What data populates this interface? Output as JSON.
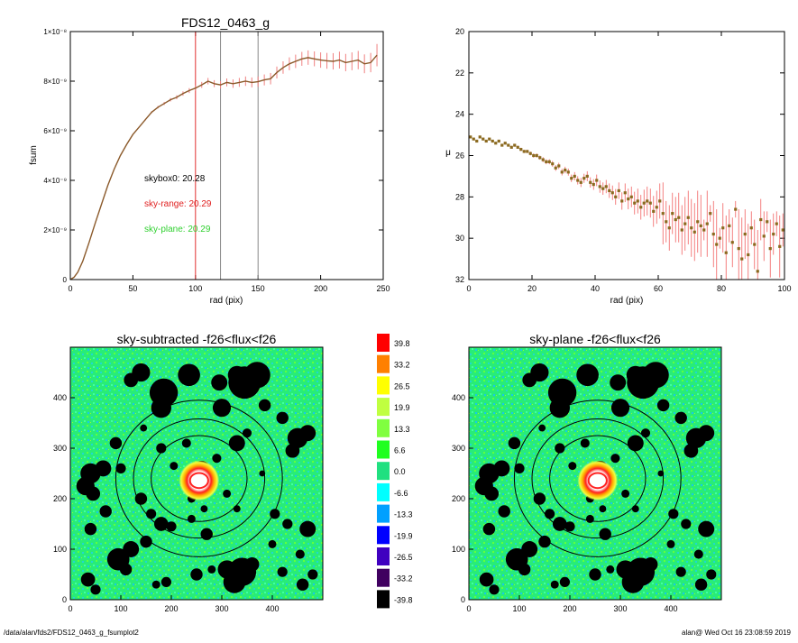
{
  "footer": {
    "path": "/data/alan/fds2/FDS12_0463_g_fsumplot2",
    "user_time": "alan@  Wed Oct 16 23:08:59 2019"
  },
  "chart_data": [
    {
      "id": "fsum-profile",
      "type": "line",
      "title": "FDS12_0463_g",
      "xlabel": "rad (pix)",
      "ylabel": "fsum",
      "xlim": [
        0,
        250
      ],
      "ylim": [
        0,
        1e-08
      ],
      "xticks": [
        "0",
        "50",
        "100",
        "150",
        "200",
        "250"
      ],
      "yticks": [
        "0",
        "2×10⁻⁹",
        "4×10⁻⁹",
        "6×10⁻⁹",
        "8×10⁻⁹",
        "1×10⁻⁸"
      ],
      "series": [
        {
          "x": [
            0,
            3,
            6,
            10,
            15,
            20,
            25,
            30,
            35,
            40,
            45,
            50,
            55,
            60,
            65,
            70,
            75,
            80,
            85,
            90,
            95,
            100,
            105,
            110,
            115,
            120,
            125,
            130,
            135,
            140,
            145,
            150,
            155,
            160,
            165,
            170,
            175,
            180,
            185,
            190,
            195,
            200,
            205,
            210,
            215,
            220,
            225,
            230,
            235,
            240,
            245
          ],
          "y": [
            0,
            1e-10,
            3e-10,
            7.5e-10,
            1.5e-09,
            2.3e-09,
            3.05e-09,
            3.8e-09,
            4.45e-09,
            5e-09,
            5.45e-09,
            5.85e-09,
            6.15e-09,
            6.45e-09,
            6.75e-09,
            6.95e-09,
            7.1e-09,
            7.25e-09,
            7.35e-09,
            7.5e-09,
            7.62e-09,
            7.72e-09,
            7.85e-09,
            8e-09,
            7.9e-09,
            7.85e-09,
            7.95e-09,
            7.9e-09,
            7.95e-09,
            8e-09,
            7.95e-09,
            7.98e-09,
            8.05e-09,
            8.1e-09,
            8.35e-09,
            8.55e-09,
            8.7e-09,
            8.8e-09,
            8.9e-09,
            8.95e-09,
            8.9e-09,
            8.85e-09,
            8.82e-09,
            8.8e-09,
            8.85e-09,
            8.75e-09,
            8.8e-09,
            8.85e-09,
            8.7e-09,
            8.75e-09,
            9.05e-09
          ],
          "yerr": [
            0,
            0,
            0,
            0,
            0,
            0,
            0,
            0,
            0,
            0,
            0,
            0,
            2e-11,
            3e-11,
            4e-11,
            5e-11,
            6e-11,
            7e-11,
            8e-11,
            9e-11,
            1e-10,
            1.1e-10,
            1.2e-10,
            1.3e-10,
            1.4e-10,
            1.5e-10,
            1.6e-10,
            1.7e-10,
            1.8e-10,
            1.9e-10,
            2e-10,
            2.1e-10,
            2.2e-10,
            2.3e-10,
            2.4e-10,
            2.5e-10,
            2.6e-10,
            2.7e-10,
            2.8e-10,
            2.9e-10,
            3e-10,
            3.1e-10,
            3.2e-10,
            3.3e-10,
            3.4e-10,
            3.5e-10,
            3.6e-10,
            3.7e-10,
            3.8e-10,
            3.9e-10,
            4.5e-10
          ]
        }
      ],
      "vlines": [
        {
          "x": 100,
          "color": "#e03030"
        },
        {
          "x": 120,
          "color": "#888888"
        },
        {
          "x": 150,
          "color": "#888888"
        }
      ],
      "annotations": [
        {
          "text": "skybox0: 20.28",
          "color": "#000000"
        },
        {
          "text": "sky-range: 20.29",
          "color": "#e02020"
        },
        {
          "text": "sky-plane: 20.29",
          "color": "#30d030"
        }
      ]
    },
    {
      "id": "mu-profile",
      "type": "scatter",
      "xlabel": "rad (pix)",
      "ylabel": "μ",
      "xlim": [
        0,
        100
      ],
      "ylim": [
        32,
        20
      ],
      "xticks": [
        "0",
        "20",
        "40",
        "60",
        "80",
        "100"
      ],
      "yticks": [
        "20",
        "22",
        "24",
        "26",
        "28",
        "30",
        "32"
      ],
      "x": [
        0.5,
        1.5,
        2.5,
        3.5,
        4.5,
        5.5,
        6.5,
        7.5,
        8.5,
        9.5,
        10.5,
        11.5,
        12.5,
        13.5,
        14.5,
        15.5,
        16.5,
        17.5,
        18.5,
        19.5,
        20.5,
        21.5,
        22.5,
        23.5,
        24.5,
        25.5,
        26.5,
        27.5,
        28.5,
        29.5,
        30.5,
        31.5,
        32.5,
        33.5,
        34.5,
        35.5,
        36.5,
        37.5,
        38.5,
        39.5,
        40.5,
        41.5,
        42.5,
        43.5,
        44.5,
        45.5,
        46.5,
        47.5,
        48.5,
        49.5,
        50.5,
        51.5,
        52.5,
        53.5,
        54.5,
        55.5,
        56.5,
        57.5,
        58.5,
        59.5,
        60.5,
        61.5,
        62.5,
        63.5,
        64.5,
        65.5,
        66.5,
        67.5,
        68.5,
        69.5,
        70.5,
        71.5,
        72.5,
        73.5,
        74.5,
        75.5,
        76.5,
        77.5,
        78.5,
        79.5,
        80.5,
        81.5,
        82.5,
        83.5,
        84.5,
        85.5,
        86.5,
        87.5,
        88.5,
        89.5,
        90.5,
        91.5,
        92.5,
        93.5,
        94.5,
        95.5,
        96.5,
        97.5,
        98.5,
        99.5
      ],
      "y": [
        25.1,
        25.2,
        25.3,
        25.1,
        25.2,
        25.3,
        25.2,
        25.3,
        25.4,
        25.3,
        25.5,
        25.4,
        25.5,
        25.6,
        25.5,
        25.6,
        25.7,
        25.8,
        25.8,
        25.9,
        26.0,
        26.0,
        26.1,
        26.2,
        26.3,
        26.3,
        26.4,
        26.6,
        26.5,
        26.8,
        26.7,
        26.8,
        27.1,
        27.0,
        27.2,
        27.3,
        27.1,
        27.0,
        27.3,
        27.4,
        27.2,
        27.5,
        27.6,
        27.5,
        27.7,
        27.8,
        28.0,
        27.7,
        28.2,
        27.8,
        28.1,
        28.0,
        28.3,
        28.2,
        28.5,
        28.3,
        28.2,
        28.3,
        28.7,
        28.5,
        28.2,
        28.8,
        29.2,
        29.5,
        28.8,
        29.1,
        29.0,
        29.6,
        29.3,
        29.0,
        29.5,
        29.7,
        29.2,
        29.4,
        29.6,
        29.3,
        28.8,
        29.8,
        30.3,
        30.0,
        29.5,
        30.7,
        29.4,
        30.2,
        28.6,
        30.5,
        31.0,
        29.8,
        30.8,
        29.5,
        30.3,
        31.6,
        29.1,
        29.9,
        29.2,
        30.5,
        29.8,
        29.3,
        30.4,
        29.6
      ],
      "yerr": [
        0.05,
        0.05,
        0.05,
        0.05,
        0.05,
        0.05,
        0.05,
        0.05,
        0.05,
        0.05,
        0.06,
        0.06,
        0.06,
        0.07,
        0.07,
        0.07,
        0.08,
        0.08,
        0.08,
        0.09,
        0.1,
        0.1,
        0.1,
        0.12,
        0.12,
        0.12,
        0.14,
        0.14,
        0.15,
        0.16,
        0.16,
        0.17,
        0.18,
        0.2,
        0.2,
        0.22,
        0.22,
        0.24,
        0.25,
        0.26,
        0.28,
        0.3,
        0.3,
        0.32,
        0.35,
        0.35,
        0.38,
        0.4,
        0.42,
        0.45,
        0.5,
        0.5,
        0.55,
        0.6,
        0.6,
        0.65,
        0.7,
        0.7,
        0.75,
        0.8,
        0.85,
        1.5,
        1.0,
        1.1,
        1.0,
        1.1,
        1.2,
        1.2,
        1.3,
        1.3,
        1.4,
        1.4,
        1.5,
        1.5,
        0.5,
        1.6,
        0.4,
        1.6,
        1.7,
        0.5,
        1.2,
        1.8,
        0.8,
        1.2,
        0.4,
        1.9,
        2.0,
        1.2,
        1.5,
        0.8,
        1.2,
        2.0,
        1.0,
        1.2,
        0.5,
        1.4,
        1.0,
        0.6,
        1.5,
        0.8
      ]
    },
    {
      "id": "sky-subtracted-image",
      "type": "heatmap",
      "title": "sky-subtracted -f26<flux<f26",
      "xlim": [
        0,
        500
      ],
      "ylim": [
        0,
        500
      ],
      "xticks": [
        "0",
        "100",
        "200",
        "300",
        "400"
      ],
      "yticks": [
        "0",
        "100",
        "200",
        "300",
        "400"
      ]
    },
    {
      "id": "sky-plane-image",
      "type": "heatmap",
      "title": "sky-plane -f26<flux<f26",
      "xlim": [
        0,
        500
      ],
      "ylim": [
        0,
        500
      ],
      "xticks": [
        "0",
        "100",
        "200",
        "300",
        "400"
      ],
      "yticks": [
        "0",
        "100",
        "200",
        "300",
        "400"
      ]
    }
  ],
  "colorbar": {
    "labels": [
      "39.8",
      "33.2",
      "26.5",
      "19.9",
      "13.3",
      "6.6",
      "0.0",
      "-6.6",
      "-13.3",
      "-19.9",
      "-26.5",
      "-33.2",
      "-39.8"
    ],
    "colors": [
      "#ff0000",
      "#ff8000",
      "#ffff00",
      "#c0ff40",
      "#80ff40",
      "#20ff20",
      "#20e080",
      "#00ffff",
      "#00a0ff",
      "#0000ff",
      "#4000c0",
      "#400060",
      "#000000"
    ]
  },
  "image_features": {
    "background": "#30f080",
    "mask_color": "#000000",
    "galaxy_core_color": "#ffffff",
    "galaxy_rim_color": "#ff2020",
    "ellipse_color": "#000000",
    "masks": [
      [
        260,
        260,
        15
      ],
      [
        185,
        410,
        28
      ],
      [
        180,
        380,
        20
      ],
      [
        235,
        445,
        22
      ],
      [
        140,
        450,
        18
      ],
      [
        120,
        435,
        14
      ],
      [
        345,
        430,
        32
      ],
      [
        370,
        445,
        26
      ],
      [
        330,
        445,
        18
      ],
      [
        295,
        430,
        16
      ],
      [
        300,
        380,
        18
      ],
      [
        385,
        385,
        12
      ],
      [
        420,
        360,
        12
      ],
      [
        450,
        320,
        20
      ],
      [
        470,
        330,
        16
      ],
      [
        440,
        295,
        14
      ],
      [
        65,
        260,
        16
      ],
      [
        40,
        250,
        20
      ],
      [
        30,
        225,
        18
      ],
      [
        45,
        210,
        14
      ],
      [
        70,
        175,
        12
      ],
      [
        40,
        140,
        12
      ],
      [
        90,
        310,
        12
      ],
      [
        180,
        300,
        10
      ],
      [
        230,
        310,
        9
      ],
      [
        330,
        310,
        16
      ],
      [
        290,
        280,
        9
      ],
      [
        100,
        260,
        10
      ],
      [
        140,
        200,
        12
      ],
      [
        160,
        170,
        10
      ],
      [
        180,
        150,
        14
      ],
      [
        200,
        145,
        10
      ],
      [
        240,
        160,
        8
      ],
      [
        270,
        130,
        12
      ],
      [
        150,
        115,
        12
      ],
      [
        120,
        100,
        16
      ],
      [
        95,
        80,
        22
      ],
      [
        110,
        60,
        12
      ],
      [
        250,
        50,
        12
      ],
      [
        280,
        60,
        8
      ],
      [
        310,
        60,
        18
      ],
      [
        340,
        55,
        28
      ],
      [
        325,
        35,
        22
      ],
      [
        360,
        70,
        14
      ],
      [
        190,
        35,
        10
      ],
      [
        170,
        30,
        8
      ],
      [
        405,
        170,
        10
      ],
      [
        430,
        150,
        10
      ],
      [
        470,
        140,
        16
      ],
      [
        400,
        110,
        8
      ],
      [
        455,
        90,
        9
      ],
      [
        420,
        55,
        10
      ],
      [
        480,
        50,
        10
      ],
      [
        460,
        30,
        12
      ],
      [
        35,
        40,
        14
      ],
      [
        50,
        20,
        10
      ],
      [
        240,
        200,
        8
      ],
      [
        270,
        215,
        7
      ],
      [
        310,
        210,
        8
      ],
      [
        330,
        180,
        7
      ],
      [
        350,
        330,
        9
      ],
      [
        205,
        265,
        8
      ],
      [
        225,
        235,
        7
      ],
      [
        265,
        180,
        7
      ],
      [
        145,
        340,
        7
      ],
      [
        380,
        250,
        6
      ]
    ],
    "galaxy": [
      255,
      236
    ],
    "ellipses": [
      [
        255,
        240,
        95,
        85
      ],
      [
        255,
        240,
        130,
        118
      ],
      [
        255,
        240,
        165,
        155
      ]
    ]
  }
}
